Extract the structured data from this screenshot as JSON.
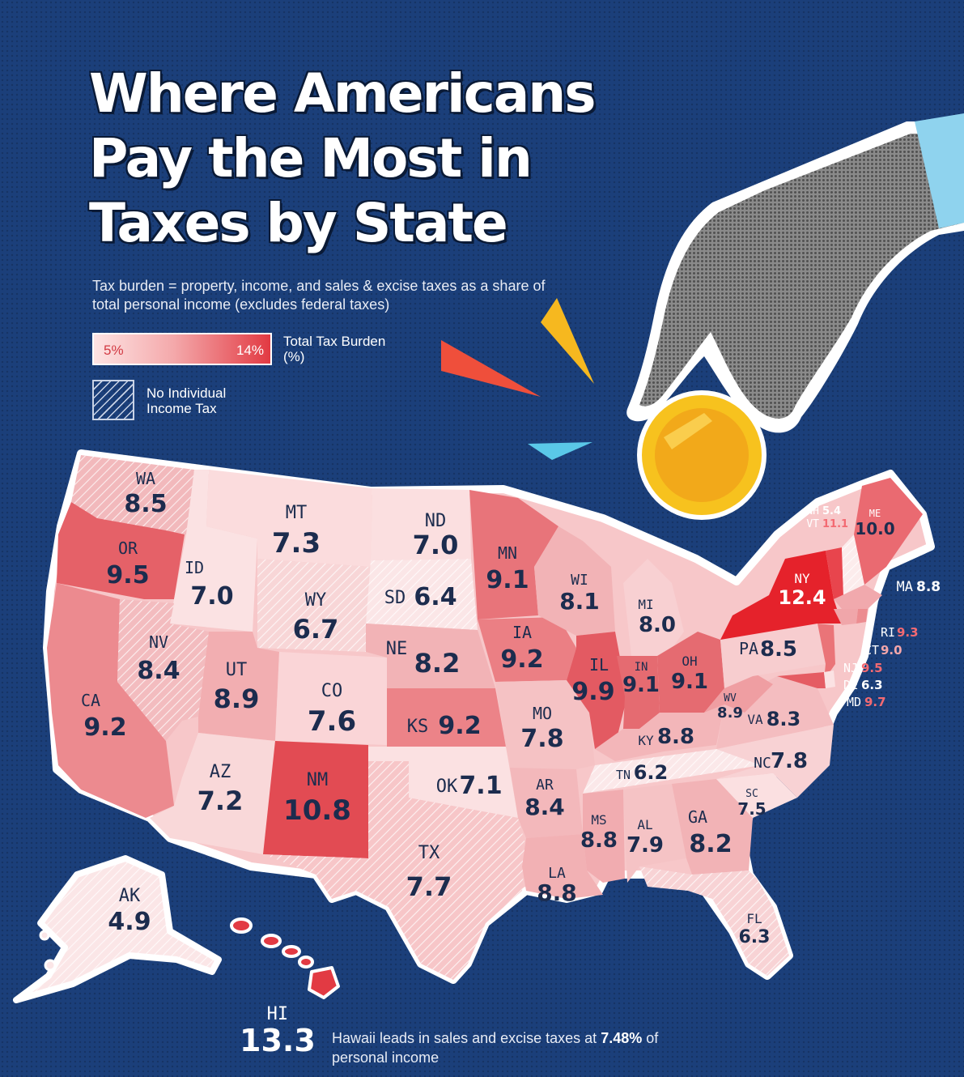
{
  "title": [
    "Where Americans",
    "Pay the Most in",
    "Taxes by State"
  ],
  "subtitle": "Tax burden = property, income, and sales & excise taxes as a share of total personal income (excludes federal taxes)",
  "legend": {
    "min_label": "5%",
    "max_label": "14%",
    "scale_title": "Total Tax Burden (%)",
    "hatch_label": "No Individual Income Tax",
    "color_low": "#fde3e3",
    "color_high": "#e23a43"
  },
  "states": [
    {
      "abbr": "WA",
      "value": "8.5",
      "no_income_tax": true
    },
    {
      "abbr": "OR",
      "value": "9.5"
    },
    {
      "abbr": "CA",
      "value": "9.2"
    },
    {
      "abbr": "ID",
      "value": "7.0"
    },
    {
      "abbr": "NV",
      "value": "8.4",
      "no_income_tax": true
    },
    {
      "abbr": "MT",
      "value": "7.3"
    },
    {
      "abbr": "WY",
      "value": "6.7",
      "no_income_tax": true
    },
    {
      "abbr": "UT",
      "value": "8.9"
    },
    {
      "abbr": "AZ",
      "value": "7.2"
    },
    {
      "abbr": "CO",
      "value": "7.6"
    },
    {
      "abbr": "NM",
      "value": "10.8"
    },
    {
      "abbr": "ND",
      "value": "7.0"
    },
    {
      "abbr": "SD",
      "value": "6.4",
      "no_income_tax": true
    },
    {
      "abbr": "NE",
      "value": "8.2"
    },
    {
      "abbr": "KS",
      "value": "9.2"
    },
    {
      "abbr": "OK",
      "value": "7.1"
    },
    {
      "abbr": "TX",
      "value": "7.7",
      "no_income_tax": true
    },
    {
      "abbr": "MN",
      "value": "9.1"
    },
    {
      "abbr": "IA",
      "value": "9.2"
    },
    {
      "abbr": "MO",
      "value": "7.8"
    },
    {
      "abbr": "AR",
      "value": "8.4"
    },
    {
      "abbr": "LA",
      "value": "8.8"
    },
    {
      "abbr": "WI",
      "value": "8.1"
    },
    {
      "abbr": "IL",
      "value": "9.9"
    },
    {
      "abbr": "MI",
      "value": "8.0"
    },
    {
      "abbr": "IN",
      "value": "9.1"
    },
    {
      "abbr": "OH",
      "value": "9.1"
    },
    {
      "abbr": "KY",
      "value": "8.8"
    },
    {
      "abbr": "TN",
      "value": "6.2",
      "no_income_tax": true
    },
    {
      "abbr": "MS",
      "value": "8.8"
    },
    {
      "abbr": "AL",
      "value": "7.9"
    },
    {
      "abbr": "GA",
      "value": "8.2"
    },
    {
      "abbr": "FL",
      "value": "6.3",
      "no_income_tax": true
    },
    {
      "abbr": "SC",
      "value": "7.5"
    },
    {
      "abbr": "NC",
      "value": "7.8"
    },
    {
      "abbr": "VA",
      "value": "8.3"
    },
    {
      "abbr": "WV",
      "value": "8.9"
    },
    {
      "abbr": "PA",
      "value": "8.5"
    },
    {
      "abbr": "NY",
      "value": "12.4"
    },
    {
      "abbr": "ME",
      "value": "10.0"
    },
    {
      "abbr": "NH",
      "value": "5.4",
      "no_income_tax": true
    },
    {
      "abbr": "VT",
      "value": "11.1"
    },
    {
      "abbr": "MA",
      "value": "8.8"
    },
    {
      "abbr": "RI",
      "value": "9.3"
    },
    {
      "abbr": "CT",
      "value": "9.0"
    },
    {
      "abbr": "NJ",
      "value": "9.5"
    },
    {
      "abbr": "DE",
      "value": "6.3"
    },
    {
      "abbr": "MD",
      "value": "9.7"
    },
    {
      "abbr": "AK",
      "value": "4.9",
      "no_income_tax": true
    },
    {
      "abbr": "HI",
      "value": "13.3"
    }
  ],
  "footnote": {
    "text_before": "Hawaii leads in sales and excise taxes at ",
    "highlight": "7.48%",
    "text_after": " of personal income"
  },
  "colors": {
    "background": "#1b3f7a",
    "coin": "#f7c21e",
    "accent_red": "#ef4f3b",
    "accent_yellow": "#f6b81f",
    "accent_cyan": "#5ac8e8"
  }
}
